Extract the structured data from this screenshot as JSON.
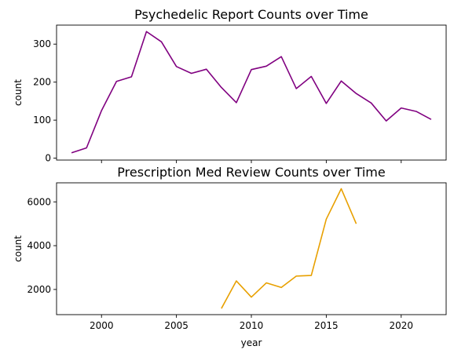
{
  "chart_data": [
    {
      "type": "line",
      "title": "Psychedelic Report Counts over Time",
      "xlabel": "",
      "ylabel": "count",
      "xlim": [
        1997,
        2023
      ],
      "ylim": [
        -5,
        350
      ],
      "yticks": [
        0,
        100,
        200,
        300
      ],
      "xticks": [
        2000,
        2005,
        2010,
        2015,
        2020
      ],
      "show_xticklabels": false,
      "color": "#800080",
      "grid": false,
      "x": [
        1998,
        1999,
        2000,
        2001,
        2002,
        2003,
        2004,
        2005,
        2006,
        2007,
        2008,
        2009,
        2010,
        2011,
        2012,
        2013,
        2014,
        2015,
        2016,
        2017,
        2018,
        2019,
        2020,
        2021,
        2022
      ],
      "y": [
        14,
        27,
        125,
        202,
        214,
        333,
        306,
        241,
        223,
        234,
        186,
        146,
        233,
        242,
        267,
        183,
        215,
        144,
        203,
        170,
        145,
        98,
        132,
        123,
        102
      ]
    },
    {
      "type": "line",
      "title": "Prescription Med Review Counts over Time",
      "xlabel": "year",
      "ylabel": "count",
      "xlim": [
        1997,
        2023
      ],
      "ylim": [
        850,
        6870
      ],
      "yticks": [
        2000,
        4000,
        6000
      ],
      "xticks": [
        2000,
        2005,
        2010,
        2015,
        2020
      ],
      "show_xticklabels": true,
      "color": "#E8A000",
      "grid": false,
      "x": [
        2008,
        2009,
        2010,
        2011,
        2012,
        2013,
        2014,
        2015,
        2016,
        2017
      ],
      "y": [
        1130,
        2390,
        1650,
        2300,
        2090,
        2610,
        2640,
        5210,
        6600,
        5000
      ]
    }
  ]
}
